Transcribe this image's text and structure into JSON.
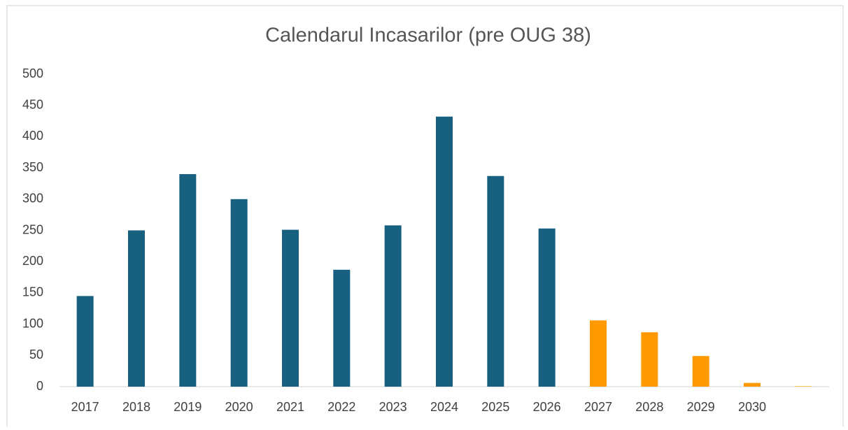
{
  "chart_data": {
    "type": "bar",
    "title": "Calendarul Incasarilor (pre OUG 38)",
    "categories": [
      "2017",
      "2018",
      "2019",
      "2020",
      "2021",
      "2022",
      "2023",
      "2024",
      "2025",
      "2026",
      "2027",
      "2028",
      "2029",
      "2030",
      null
    ],
    "values": [
      145,
      250,
      340,
      300,
      251,
      187,
      258,
      432,
      337,
      253,
      106,
      87,
      49,
      6,
      1
    ],
    "colors": [
      "#17607f",
      "#17607f",
      "#17607f",
      "#17607f",
      "#17607f",
      "#17607f",
      "#17607f",
      "#17607f",
      "#17607f",
      "#17607f",
      "#ff9900",
      "#ff9900",
      "#ff9900",
      "#ff9900",
      "#f2c94c"
    ],
    "ylim": [
      0,
      500
    ],
    "yticks": [
      0,
      50,
      100,
      150,
      200,
      250,
      300,
      350,
      400,
      450,
      500
    ],
    "grid": false
  }
}
